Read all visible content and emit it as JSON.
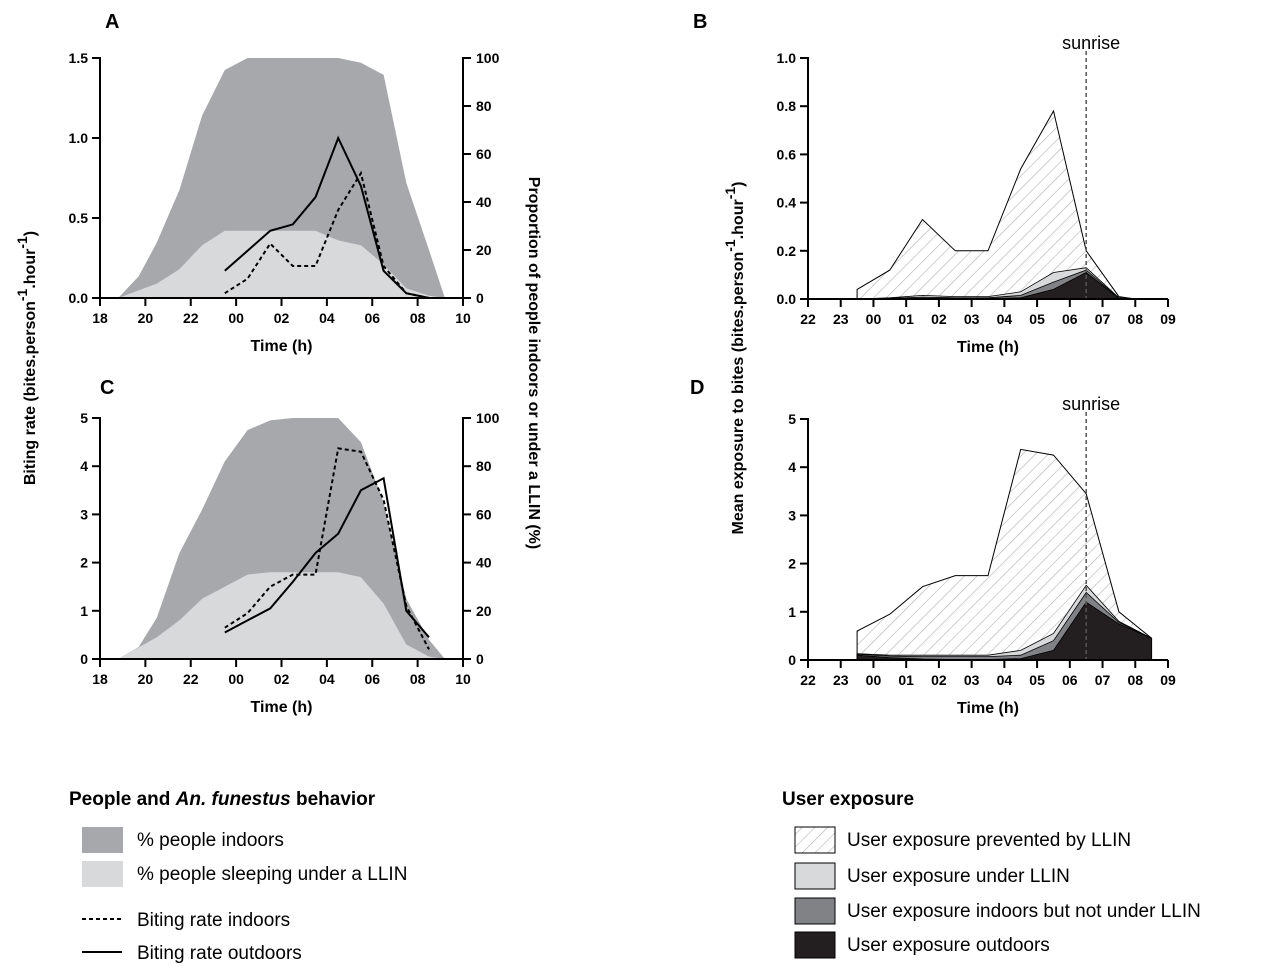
{
  "legends": {
    "left": {
      "title_prefix": "People and ",
      "title_italic": "An. funestus",
      "title_suffix": " behavior",
      "items": [
        {
          "label": "% people indoors",
          "kind": "dark-fill"
        },
        {
          "label": "% people sleeping under a LLIN",
          "kind": "light-fill"
        },
        {
          "label": "Biting rate indoors",
          "kind": "dashed"
        },
        {
          "label": "Biting rate outdoors",
          "kind": "solid"
        }
      ]
    },
    "right": {
      "title": "User exposure",
      "items": [
        {
          "label": "User exposure prevented by LLIN",
          "kind": "hatched"
        },
        {
          "label": "User exposure under LLIN",
          "kind": "light"
        },
        {
          "label": "User exposure indoors but not under LLIN",
          "kind": "dark-grey"
        },
        {
          "label": "User exposure outdoors",
          "kind": "black"
        }
      ]
    }
  },
  "colors": {
    "indoors": "#a7a8ac",
    "under_llin": "#d8d9db",
    "hatch": "#b3b3b3",
    "indoors_not_net": "#808285",
    "outdoors": "#231f20"
  },
  "chart_data": [
    {
      "panel": "A",
      "type": "area",
      "xlabel": "Time (h)",
      "ylabel_left": "Biting rate (bites.person-1.hour-1)",
      "ylabel_right": "Proportion of people indoors or under a LLIN (%)",
      "x_ticks": [
        "18",
        "20",
        "22",
        "00",
        "02",
        "04",
        "06",
        "08",
        "10"
      ],
      "xlim": [
        18,
        34
      ],
      "ylim_left": [
        0,
        1.5
      ],
      "y_ticks_left": [
        "0.0",
        "0.5",
        "1.0",
        "1.5"
      ],
      "ylim_right": [
        0,
        100
      ],
      "y_ticks_right": [
        "0",
        "20",
        "40",
        "60",
        "80",
        "100"
      ],
      "people_indoors": {
        "x": [
          18.8,
          19.7,
          20.5,
          21.5,
          22.5,
          23.5,
          24.5,
          25.5,
          26.5,
          27.5,
          28.5,
          29.5,
          30.5,
          31.5,
          32.5,
          33.2
        ],
        "y": [
          0,
          9,
          23,
          45,
          76,
          95,
          100,
          100,
          100,
          100,
          100,
          98,
          93,
          48,
          20,
          0
        ]
      },
      "people_under_llin": {
        "x": [
          18.8,
          20.5,
          21.5,
          22.5,
          23.5,
          24.5,
          25.5,
          26.5,
          27.5,
          28.5,
          29.5,
          30.5,
          31.5,
          32.5,
          33.2
        ],
        "y": [
          0,
          6,
          12,
          22,
          28,
          28,
          28,
          28,
          28,
          24,
          22,
          14,
          4,
          1,
          0
        ]
      },
      "series": [
        {
          "name": "Biting rate indoors",
          "style": "dashed",
          "x": [
            23.5,
            24.5,
            25.5,
            26.5,
            27.5,
            28.5,
            29.5,
            30.5,
            31.5,
            32.5
          ],
          "y": [
            0.03,
            0.12,
            0.34,
            0.2,
            0.2,
            0.55,
            0.78,
            0.2,
            0.03,
            0.0
          ]
        },
        {
          "name": "Biting rate outdoors",
          "style": "solid",
          "x": [
            23.5,
            25.5,
            26.5,
            27.5,
            28.5,
            29.5,
            30.5,
            31.5,
            32.5
          ],
          "y": [
            0.17,
            0.42,
            0.46,
            0.63,
            1.0,
            0.7,
            0.17,
            0.03,
            0.0
          ]
        }
      ]
    },
    {
      "panel": "C",
      "type": "area",
      "xlabel": "Time (h)",
      "x_ticks": [
        "18",
        "20",
        "22",
        "00",
        "02",
        "04",
        "06",
        "08",
        "10"
      ],
      "xlim": [
        18,
        34
      ],
      "ylim_left": [
        0,
        5
      ],
      "y_ticks_left": [
        "0",
        "1",
        "2",
        "3",
        "4",
        "5"
      ],
      "ylim_right": [
        0,
        100
      ],
      "y_ticks_right": [
        "0",
        "20",
        "40",
        "60",
        "80",
        "100"
      ],
      "people_indoors": {
        "x": [
          18.8,
          19.7,
          20.5,
          21.5,
          22.5,
          23.5,
          24.5,
          25.5,
          26.5,
          27.5,
          28.5,
          29.5,
          30.5,
          31.5,
          32.5,
          33.2
        ],
        "y": [
          0,
          5,
          17,
          44,
          62,
          82,
          95,
          99,
          100,
          100,
          100,
          90,
          65,
          25,
          8,
          0
        ]
      },
      "people_under_llin": {
        "x": [
          18.8,
          20.5,
          21.5,
          22.5,
          23.5,
          24.5,
          25.5,
          26.5,
          27.5,
          28.5,
          29.5,
          30.5,
          31.5,
          32.5,
          33.2
        ],
        "y": [
          0,
          9,
          16,
          25,
          30,
          35,
          36,
          36,
          36,
          36,
          34,
          23,
          6,
          1,
          0
        ]
      },
      "series": [
        {
          "name": "Biting rate indoors",
          "style": "dashed",
          "x": [
            23.5,
            24.5,
            25.5,
            26.5,
            27.5,
            28.5,
            29.5,
            30.5,
            31.5,
            32.5
          ],
          "y": [
            0.65,
            0.95,
            1.5,
            1.75,
            1.75,
            4.37,
            4.3,
            3.3,
            1.1,
            0.2
          ]
        },
        {
          "name": "Biting rate outdoors",
          "style": "solid",
          "x": [
            23.5,
            24.5,
            25.5,
            26.5,
            27.5,
            28.5,
            29.5,
            30.5,
            31.5,
            32.5
          ],
          "y": [
            0.55,
            0.8,
            1.05,
            1.6,
            2.2,
            2.6,
            3.5,
            3.75,
            1.0,
            0.45
          ]
        }
      ]
    },
    {
      "panel": "B",
      "type": "area",
      "xlabel": "Time (h)",
      "ylabel": "Mean exposure to bites (bites.person-1.hour-1)",
      "annotation": "sunrise",
      "sunrise_x": 30.5,
      "x_ticks": [
        "22",
        "23",
        "00",
        "01",
        "02",
        "03",
        "04",
        "05",
        "06",
        "07",
        "08",
        "09"
      ],
      "xlim": [
        22,
        33
      ],
      "ylim": [
        0,
        1.0
      ],
      "y_ticks": [
        "0.0",
        "0.2",
        "0.4",
        "0.6",
        "0.8",
        "1.0"
      ],
      "x": [
        23.5,
        24.5,
        25.5,
        26.5,
        27.5,
        28.5,
        29.5,
        30.5,
        31.5,
        32.0
      ],
      "total": [
        0.04,
        0.12,
        0.33,
        0.2,
        0.2,
        0.54,
        0.78,
        0.2,
        0.01,
        0.0
      ],
      "layers": {
        "under_llin": [
          0.0,
          0.005,
          0.015,
          0.01,
          0.01,
          0.03,
          0.11,
          0.13,
          0.005,
          0.0
        ],
        "indoors_not_net": [
          0.0,
          0.003,
          0.008,
          0.005,
          0.005,
          0.015,
          0.07,
          0.12,
          0.003,
          0.0
        ],
        "outdoors": [
          0.0,
          0.001,
          0.003,
          0.002,
          0.002,
          0.005,
          0.04,
          0.11,
          0.002,
          0.0
        ]
      }
    },
    {
      "panel": "D",
      "type": "area",
      "xlabel": "Time (h)",
      "annotation": "sunrise",
      "sunrise_x": 30.5,
      "x_ticks": [
        "22",
        "23",
        "00",
        "01",
        "02",
        "03",
        "04",
        "05",
        "06",
        "07",
        "08",
        "09"
      ],
      "xlim": [
        22,
        33
      ],
      "ylim": [
        0,
        5
      ],
      "y_ticks": [
        "0",
        "1",
        "2",
        "3",
        "4",
        "5"
      ],
      "x": [
        23.5,
        24.5,
        25.5,
        26.5,
        27.5,
        28.5,
        29.5,
        30.5,
        31.5,
        32.5
      ],
      "total": [
        0.6,
        0.95,
        1.52,
        1.75,
        1.75,
        4.37,
        4.25,
        3.45,
        1.0,
        0.45
      ],
      "layers": {
        "under_llin": [
          0.13,
          0.1,
          0.1,
          0.1,
          0.1,
          0.2,
          0.55,
          1.55,
          0.8,
          0.45
        ],
        "indoors_not_net": [
          0.12,
          0.08,
          0.07,
          0.07,
          0.07,
          0.1,
          0.4,
          1.4,
          0.78,
          0.45
        ],
        "outdoors": [
          0.1,
          0.05,
          0.02,
          0.01,
          0.01,
          0.03,
          0.2,
          1.2,
          0.75,
          0.45
        ]
      }
    }
  ]
}
